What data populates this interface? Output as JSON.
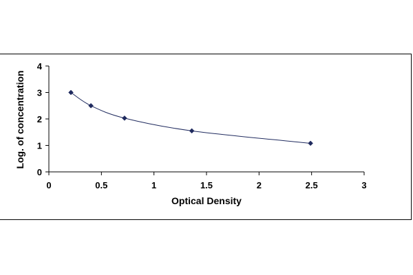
{
  "chart_data": {
    "type": "line",
    "title": "",
    "xlabel": "Optical Density",
    "ylabel": "Log. of concentration",
    "xlim": [
      0,
      3
    ],
    "ylim": [
      0,
      4
    ],
    "x_ticks": [
      "0",
      "0.5",
      "1",
      "1.5",
      "2",
      "2.5",
      "3"
    ],
    "x_tick_values": [
      0,
      0.5,
      1,
      1.5,
      2,
      2.5,
      3
    ],
    "y_ticks": [
      "0",
      "1",
      "2",
      "3",
      "4"
    ],
    "y_tick_values": [
      0,
      1,
      2,
      3,
      4
    ],
    "grid": false,
    "legend": "none",
    "series": [
      {
        "x": [
          0.21,
          0.4,
          0.72,
          1.36,
          2.49
        ],
        "y": [
          3.0,
          2.5,
          2.03,
          1.55,
          1.08
        ],
        "color": "#1f2a5e",
        "marker": "diamond"
      }
    ]
  }
}
